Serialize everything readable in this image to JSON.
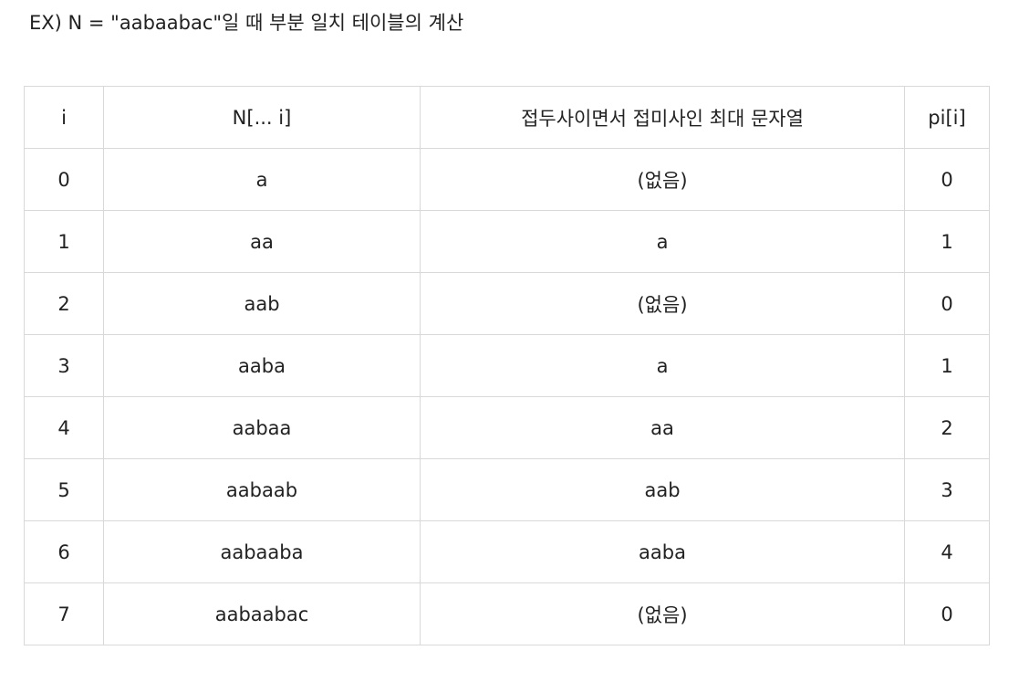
{
  "title": "EX) N = \"aabaabac\"일 때 부분 일치 테이블의 계산",
  "table": {
    "headers": {
      "i": "i",
      "prefix": "N[... i]",
      "match": "접두사이면서 접미사인 최대 문자열",
      "pi": "pi[i]"
    },
    "rows": [
      {
        "i": "0",
        "prefix": "a",
        "match": "(없음)",
        "pi": "0"
      },
      {
        "i": "1",
        "prefix": "aa",
        "match": "a",
        "pi": "1"
      },
      {
        "i": "2",
        "prefix": "aab",
        "match": "(없음)",
        "pi": "0"
      },
      {
        "i": "3",
        "prefix": "aaba",
        "match": "a",
        "pi": "1"
      },
      {
        "i": "4",
        "prefix": "aabaa",
        "match": "aa",
        "pi": "2"
      },
      {
        "i": "5",
        "prefix": "aabaab",
        "match": "aab",
        "pi": "3"
      },
      {
        "i": "6",
        "prefix": "aabaaba",
        "match": "aaba",
        "pi": "4"
      },
      {
        "i": "7",
        "prefix": "aabaabac",
        "match": "(없음)",
        "pi": "0"
      }
    ]
  }
}
